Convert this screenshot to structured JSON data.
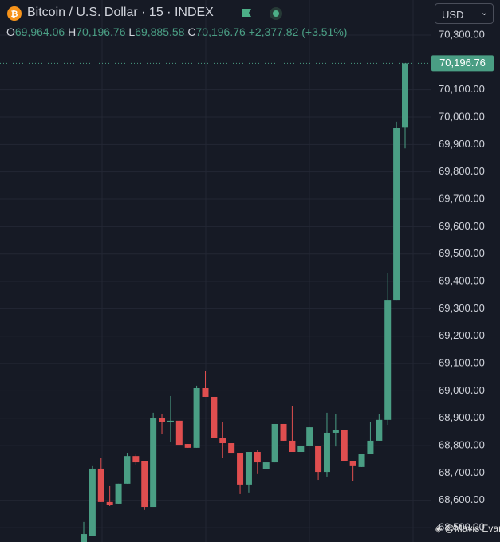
{
  "header": {
    "title": "Bitcoin / U.S. Dollar · 15 · INDEX",
    "o": "O",
    "open": "69,964.06",
    "h": "H",
    "high": "70,196.76",
    "l": "L",
    "low": "69,885.58",
    "c": "C",
    "close": "70,196.76",
    "change": "+2,377.82 (+3.51%)",
    "currency": "USD",
    "watermark": "@Mavis Evan"
  },
  "chart_data": {
    "type": "candlestick",
    "open": [
      68448,
      68471,
      68716,
      68594,
      68588,
      68661,
      68762,
      68745,
      68576,
      68902,
      68885,
      68891,
      68806,
      68792,
      69010,
      68978,
      68827,
      68809,
      68774,
      68658,
      68777,
      68713,
      68739,
      68879,
      68818,
      68777,
      68800,
      68800,
      68704,
      68847,
      68856,
      68745,
      68722,
      68771,
      68818,
      68894,
      69330,
      69964.06
    ],
    "high": [
      68521,
      68725,
      68754,
      68652,
      68661,
      68774,
      68768,
      68745,
      68920,
      68914,
      68981,
      68891,
      68806,
      69019,
      69074,
      68978,
      68885,
      68809,
      68774,
      68777,
      68783,
      68739,
      68879,
      68879,
      68943,
      68800,
      68867,
      68800,
      68920,
      68914,
      68856,
      68745,
      68771,
      68885,
      68914,
      69432,
      69983,
      70196.76
    ],
    "low": [
      68448,
      68471,
      68594,
      68579,
      68588,
      68661,
      68730,
      68565,
      68576,
      68841,
      68812,
      68803,
      68792,
      68792,
      68978,
      68827,
      68754,
      68774,
      68623,
      68629,
      68696,
      68713,
      68739,
      68818,
      68777,
      68777,
      68800,
      68675,
      68687,
      68797,
      68745,
      68672,
      68722,
      68771,
      68818,
      68876,
      69330,
      69885.58
    ],
    "close": [
      68477,
      68716,
      68594,
      68582,
      68661,
      68762,
      68739,
      68576,
      68902,
      68885,
      68891,
      68803,
      68792,
      69010,
      68978,
      68827,
      68809,
      68774,
      68658,
      68777,
      68739,
      68739,
      68879,
      68818,
      68777,
      68800,
      68867,
      68704,
      68847,
      68856,
      68745,
      68725,
      68771,
      68818,
      68894,
      69330,
      69962,
      70196.76
    ],
    "up_color": "#4a9e84",
    "down_color": "#e04e4f",
    "last_label": "70,196.76",
    "ylim": [
      68448,
      70428
    ],
    "yticks": [
      {
        "value": 68500,
        "label": "68,500.00"
      },
      {
        "value": 68600,
        "label": "68,600.00"
      },
      {
        "value": 68700,
        "label": "68,700.00"
      },
      {
        "value": 68800,
        "label": "68,800.00"
      },
      {
        "value": 68900,
        "label": "68,900.00"
      },
      {
        "value": 69000,
        "label": "69,000.00"
      },
      {
        "value": 69100,
        "label": "69,100.00"
      },
      {
        "value": 69200,
        "label": "69,200.00"
      },
      {
        "value": 69300,
        "label": "69,300.00"
      },
      {
        "value": 69400,
        "label": "69,400.00"
      },
      {
        "value": 69500,
        "label": "69,500.00"
      },
      {
        "value": 69600,
        "label": "69,600.00"
      },
      {
        "value": 69700,
        "label": "69,700.00"
      },
      {
        "value": 69800,
        "label": "69,800.00"
      },
      {
        "value": 69900,
        "label": "69,900.00"
      },
      {
        "value": 70000,
        "label": "70,000.00"
      },
      {
        "value": 70100,
        "label": "70,100.00"
      },
      {
        "value": 70300,
        "label": "70,300.00"
      }
    ],
    "grid": true
  }
}
